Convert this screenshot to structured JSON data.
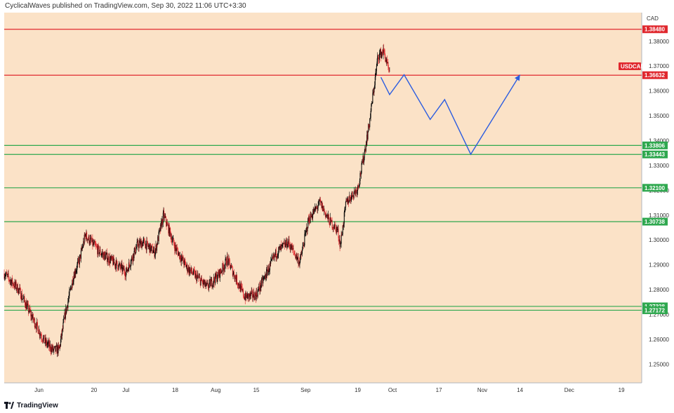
{
  "header": {
    "text": "CyclicalWaves published on TradingView.com, Sep 30, 2022 11:06 UTC+3:30"
  },
  "footer": {
    "brand": "TradingView",
    "logo_icon": "tradingview-logo-icon"
  },
  "colors": {
    "plot_background": "#fbe2c7",
    "candle_up": "#000000",
    "candle_down": "#e0282e",
    "resistance_line": "#e0282e",
    "support_line": "#2fa84f",
    "projection_line": "#2c5de0",
    "symbol_label": "#e0282e"
  },
  "chart_data": {
    "type": "candlestick",
    "symbol": "USDCAD",
    "currency": "CAD",
    "last_price": "1.36632",
    "price_range": [
      1.2425,
      1.3915
    ],
    "y_ticks": [
      "1.38000",
      "1.37000",
      "1.36000",
      "1.35000",
      "1.34000",
      "1.33000",
      "1.32000",
      "1.31000",
      "1.30000",
      "1.29000",
      "1.28000",
      "1.27000",
      "1.26000",
      "1.25000"
    ],
    "x_ticks": [
      "Jun",
      "20",
      "Jul",
      "18",
      "Aug",
      "15",
      "Sep",
      "19",
      "Oct",
      "17",
      "Nov",
      "14",
      "Dec",
      "19"
    ],
    "date_range": [
      "2022-05-20",
      "2022-12-26"
    ],
    "x_tick_dates": [
      "2022-06-01",
      "2022-06-20",
      "2022-07-01",
      "2022-07-18",
      "2022-08-01",
      "2022-08-15",
      "2022-09-01",
      "2022-09-19",
      "2022-10-01",
      "2022-10-17",
      "2022-11-01",
      "2022-11-14",
      "2022-12-01",
      "2022-12-19"
    ],
    "horizontal_levels": [
      {
        "value": "1.38480",
        "kind": "resistance"
      },
      {
        "value": "1.36632",
        "kind": "resistance"
      },
      {
        "value": "1.33806",
        "kind": "support"
      },
      {
        "value": "1.33443",
        "kind": "support"
      },
      {
        "value": "1.32100",
        "kind": "support"
      },
      {
        "value": "1.30738",
        "kind": "support"
      },
      {
        "value": "1.27328",
        "kind": "support"
      },
      {
        "value": "1.27172",
        "kind": "support"
      }
    ],
    "projection_path": [
      {
        "date": "2022-09-27",
        "price": 1.3655
      },
      {
        "date": "2022-09-30",
        "price": 1.3585
      },
      {
        "date": "2022-10-05",
        "price": 1.3665
      },
      {
        "date": "2022-10-14",
        "price": 1.3485
      },
      {
        "date": "2022-10-19",
        "price": 1.3565
      },
      {
        "date": "2022-10-28",
        "price": 1.3345
      },
      {
        "date": "2022-11-14",
        "price": 1.3665
      }
    ],
    "price_path": [
      {
        "date": "2022-05-20",
        "price": 1.2865
      },
      {
        "date": "2022-05-25",
        "price": 1.28
      },
      {
        "date": "2022-05-30",
        "price": 1.268
      },
      {
        "date": "2022-06-03",
        "price": 1.259
      },
      {
        "date": "2022-06-06",
        "price": 1.2555
      },
      {
        "date": "2022-06-08",
        "price": 1.256
      },
      {
        "date": "2022-06-10",
        "price": 1.27
      },
      {
        "date": "2022-06-13",
        "price": 1.286
      },
      {
        "date": "2022-06-15",
        "price": 1.292
      },
      {
        "date": "2022-06-17",
        "price": 1.302
      },
      {
        "date": "2022-06-22",
        "price": 1.295
      },
      {
        "date": "2022-06-28",
        "price": 1.29
      },
      {
        "date": "2022-07-01",
        "price": 1.287
      },
      {
        "date": "2022-07-05",
        "price": 1.298
      },
      {
        "date": "2022-07-07",
        "price": 1.299
      },
      {
        "date": "2022-07-11",
        "price": 1.295
      },
      {
        "date": "2022-07-14",
        "price": 1.31
      },
      {
        "date": "2022-07-18",
        "price": 1.297
      },
      {
        "date": "2022-07-22",
        "price": 1.289
      },
      {
        "date": "2022-07-29",
        "price": 1.281
      },
      {
        "date": "2022-08-02",
        "price": 1.286
      },
      {
        "date": "2022-08-05",
        "price": 1.292
      },
      {
        "date": "2022-08-11",
        "price": 1.277
      },
      {
        "date": "2022-08-15",
        "price": 1.278
      },
      {
        "date": "2022-08-22",
        "price": 1.295
      },
      {
        "date": "2022-08-26",
        "price": 1.299
      },
      {
        "date": "2022-08-30",
        "price": 1.291
      },
      {
        "date": "2022-09-02",
        "price": 1.308
      },
      {
        "date": "2022-09-06",
        "price": 1.315
      },
      {
        "date": "2022-09-09",
        "price": 1.308
      },
      {
        "date": "2022-09-12",
        "price": 1.304
      },
      {
        "date": "2022-09-13",
        "price": 1.298
      },
      {
        "date": "2022-09-15",
        "price": 1.315
      },
      {
        "date": "2022-09-19",
        "price": 1.321
      },
      {
        "date": "2022-09-21",
        "price": 1.333
      },
      {
        "date": "2022-09-23",
        "price": 1.347
      },
      {
        "date": "2022-09-26",
        "price": 1.374
      },
      {
        "date": "2022-09-28",
        "price": 1.376
      },
      {
        "date": "2022-09-30",
        "price": 1.3663
      }
    ]
  }
}
